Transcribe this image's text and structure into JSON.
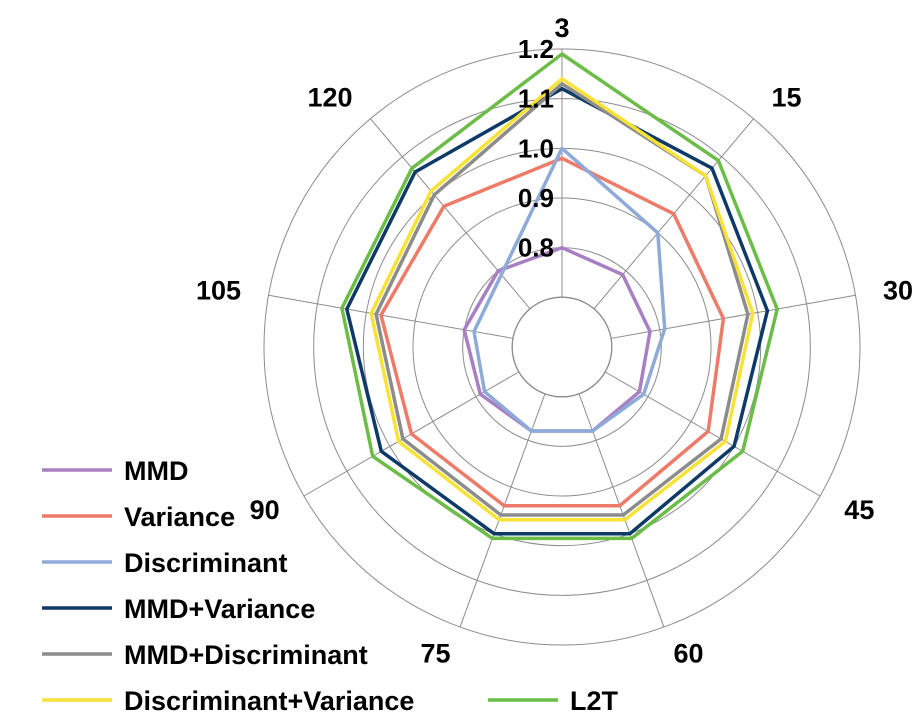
{
  "chart_data": {
    "type": "radar",
    "title": "",
    "categories": [
      "3",
      "15",
      "30",
      "45",
      "60",
      "75",
      "90",
      "105",
      "120"
    ],
    "rlim": [
      0.6,
      1.2
    ],
    "ticks": [
      "0.8",
      "0.9",
      "1.0",
      "1.1",
      "1.2"
    ],
    "tick_values": [
      0.8,
      0.9,
      1.0,
      1.1,
      1.2
    ],
    "series": [
      {
        "name": "MMD",
        "color": "#a77fc2",
        "values": [
          0.8,
          0.79,
          0.78,
          0.78,
          0.78,
          0.78,
          0.79,
          0.8,
          0.8
        ]
      },
      {
        "name": "Variance",
        "color": "#ee7b68",
        "values": [
          0.98,
          0.95,
          0.93,
          0.94,
          0.94,
          0.94,
          0.95,
          0.97,
          0.97
        ]
      },
      {
        "name": "Discriminant",
        "color": "#8eaad8",
        "values": [
          1.0,
          0.9,
          0.81,
          0.79,
          0.78,
          0.78,
          0.78,
          0.78,
          0.79
        ]
      },
      {
        "name": "MMD+Variance",
        "color": "#0e3a68",
        "values": [
          1.12,
          1.07,
          1.02,
          1.0,
          1.0,
          1.0,
          1.02,
          1.04,
          1.06
        ]
      },
      {
        "name": "MMD+Discriminant",
        "color": "#8c8c8c",
        "values": [
          1.13,
          1.05,
          0.98,
          0.97,
          0.96,
          0.96,
          0.97,
          0.98,
          1.0
        ]
      },
      {
        "name": "Discriminant+Variance",
        "color": "#f7e235",
        "values": [
          1.14,
          1.05,
          0.99,
          0.98,
          0.97,
          0.97,
          0.98,
          0.99,
          1.01
        ]
      },
      {
        "name": "L2T",
        "color": "#6cbd48",
        "values": [
          1.19,
          1.09,
          1.04,
          1.02,
          1.01,
          1.01,
          1.04,
          1.05,
          1.07
        ]
      }
    ],
    "legend_position": "bottom-left"
  }
}
